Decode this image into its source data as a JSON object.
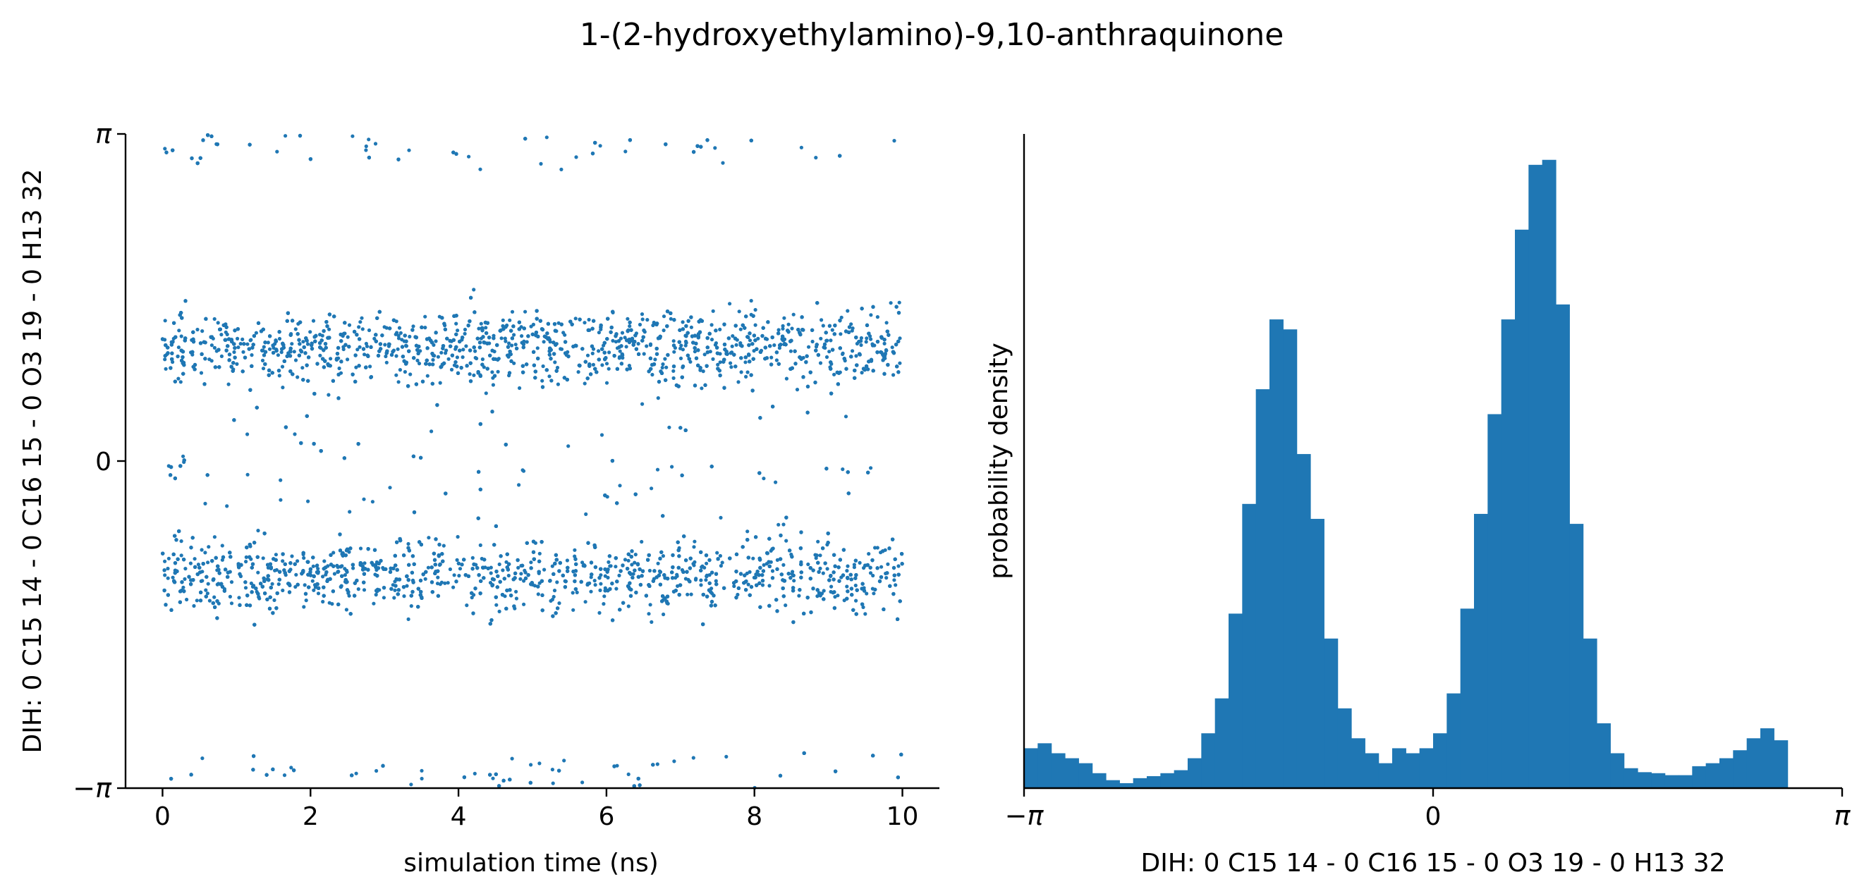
{
  "title": "1-(2-hydroxyethylamino)-9,10-anthraquinone",
  "chart_data": [
    {
      "type": "scatter",
      "xlabel": "simulation time (ns)",
      "ylabel": "DIH:  0 C15 14 -  0 C16 15 -  0 O3 19 -  0 H13 32",
      "xlim": [
        -0.5,
        10.5
      ],
      "ylim": [
        -3.14159,
        3.14159
      ],
      "xticks": [
        0,
        2,
        4,
        6,
        8,
        10
      ],
      "xtick_labels": [
        "0",
        "2",
        "4",
        "6",
        "8",
        "10"
      ],
      "yticks": [
        -3.14159,
        0,
        3.14159
      ],
      "ytick_labels": [
        "−π",
        "0",
        "π"
      ],
      "color": "#1f77b4",
      "n_points": 9000,
      "description": "points cluster in two bands around +1.1 rad and -1.1 rad across 0–10 ns, with sparse points near ±π",
      "bands": [
        {
          "center": 1.1,
          "spread": 0.45,
          "fraction": 0.46
        },
        {
          "center": -1.1,
          "spread": 0.45,
          "fraction": 0.44
        },
        {
          "center": 0.0,
          "spread": 1.6,
          "fraction": 0.06
        },
        {
          "center": 3.0,
          "spread": 0.3,
          "fraction": 0.02
        },
        {
          "center": -3.0,
          "spread": 0.3,
          "fraction": 0.02
        }
      ]
    },
    {
      "type": "bar",
      "subtype": "histogram",
      "xlabel": "DIH:  0 C15 14 -  0 C16 15 -  0 O3 19 -  0 H13 32",
      "ylabel": "probability density",
      "xlim": [
        -3.14159,
        3.14159
      ],
      "xticks": [
        -3.14159,
        0,
        3.14159
      ],
      "xtick_labels": [
        "−π",
        "0",
        "π"
      ],
      "n_bins": 60,
      "color": "#1f77b4",
      "ylim": [
        0,
        0.55
      ],
      "values": [
        0.04,
        0.045,
        0.035,
        0.03,
        0.025,
        0.015,
        0.008,
        0.005,
        0.01,
        0.012,
        0.015,
        0.018,
        0.03,
        0.055,
        0.09,
        0.175,
        0.285,
        0.4,
        0.47,
        0.46,
        0.335,
        0.27,
        0.15,
        0.08,
        0.05,
        0.035,
        0.025,
        0.04,
        0.035,
        0.04,
        0.055,
        0.095,
        0.18,
        0.275,
        0.375,
        0.47,
        0.56,
        0.625,
        0.63,
        0.485,
        0.265,
        0.15,
        0.065,
        0.035,
        0.02,
        0.016,
        0.015,
        0.013,
        0.013,
        0.022,
        0.025,
        0.03,
        0.038,
        0.05,
        0.06,
        0.048,
        0.0,
        0.0,
        0.0,
        0.0
      ]
    }
  ]
}
